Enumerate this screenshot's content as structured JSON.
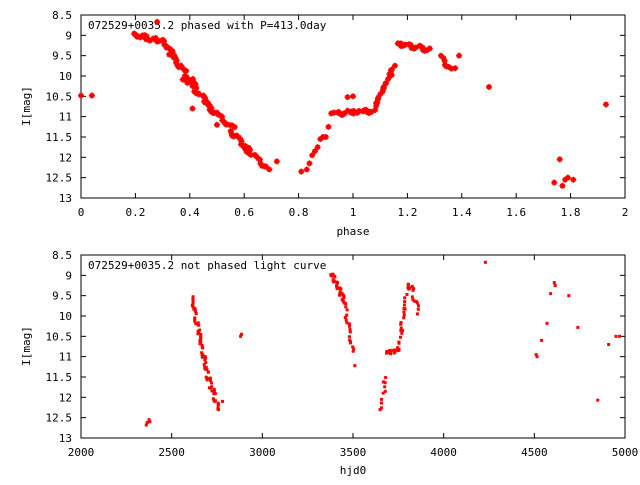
{
  "chart_data": [
    {
      "type": "scatter",
      "annotation": "072529+0035.2 phased with P=413.0day",
      "xlabel": "phase",
      "ylabel": "I[mag]",
      "xlim": [
        0,
        2
      ],
      "ylim": [
        8.5,
        13
      ],
      "y_inverted": true,
      "grid": false,
      "x_ticks": [
        "0",
        "0.2",
        "0.4",
        "0.6",
        "0.8",
        "1",
        "1.2",
        "1.4",
        "1.6",
        "1.8",
        "2"
      ],
      "y_ticks": [
        "8.5",
        "9",
        "9.5",
        "10",
        "10.5",
        "11",
        "11.5",
        "12",
        "12.5",
        "13"
      ],
      "color": "#ff0000",
      "marker": "cross",
      "segments": [
        {
          "x0": 0.19,
          "y0": 8.98,
          "x1": 0.3,
          "y1": 9.15,
          "n": 24
        },
        {
          "x0": 0.3,
          "y0": 9.15,
          "x1": 0.35,
          "y1": 9.55,
          "n": 12
        },
        {
          "x0": 0.33,
          "y0": 9.45,
          "x1": 0.42,
          "y1": 10.25,
          "n": 20
        },
        {
          "x0": 0.38,
          "y0": 10.05,
          "x1": 0.48,
          "y1": 10.75,
          "n": 18
        },
        {
          "x0": 0.45,
          "y0": 10.65,
          "x1": 0.56,
          "y1": 11.3,
          "n": 18
        },
        {
          "x0": 0.55,
          "y0": 11.35,
          "x1": 0.62,
          "y1": 11.85,
          "n": 14
        },
        {
          "x0": 0.6,
          "y0": 11.75,
          "x1": 0.69,
          "y1": 12.3,
          "n": 14
        },
        {
          "x0": 0.94,
          "y0": 10.92,
          "x1": 1.08,
          "y1": 10.86,
          "n": 22
        },
        {
          "x0": 1.08,
          "y0": 10.75,
          "x1": 1.15,
          "y1": 9.75,
          "n": 22
        },
        {
          "x0": 1.16,
          "y0": 9.2,
          "x1": 1.28,
          "y1": 9.35,
          "n": 22
        },
        {
          "x0": 1.32,
          "y0": 9.55,
          "x1": 1.37,
          "y1": 9.85,
          "n": 8
        }
      ],
      "points": [
        [
          0.0,
          10.48
        ],
        [
          0.04,
          10.48
        ],
        [
          0.28,
          8.67
        ],
        [
          0.41,
          10.8
        ],
        [
          0.45,
          10.48
        ],
        [
          0.5,
          11.2
        ],
        [
          0.5,
          10.9
        ],
        [
          0.72,
          12.1
        ],
        [
          0.81,
          12.35
        ],
        [
          0.83,
          12.3
        ],
        [
          0.84,
          12.15
        ],
        [
          0.85,
          11.95
        ],
        [
          0.86,
          11.85
        ],
        [
          0.87,
          11.75
        ],
        [
          0.88,
          11.55
        ],
        [
          0.89,
          11.5
        ],
        [
          0.9,
          11.5
        ],
        [
          0.91,
          11.25
        ],
        [
          0.92,
          10.92
        ],
        [
          0.93,
          10.9
        ],
        [
          0.98,
          10.52
        ],
        [
          1.0,
          10.5
        ],
        [
          1.39,
          9.5
        ],
        [
          1.5,
          10.27
        ],
        [
          1.74,
          12.62
        ],
        [
          1.76,
          12.05
        ],
        [
          1.77,
          12.7
        ],
        [
          1.78,
          12.55
        ],
        [
          1.79,
          12.5
        ],
        [
          1.81,
          12.55
        ],
        [
          1.93,
          10.7
        ]
      ]
    },
    {
      "type": "scatter",
      "annotation": "072529+0035.2 not phased light curve",
      "xlabel": "hjd0",
      "ylabel": "I[mag]",
      "xlim": [
        2000,
        5000
      ],
      "ylim": [
        8.5,
        13
      ],
      "y_inverted": true,
      "grid": false,
      "x_ticks": [
        "2000",
        "2500",
        "3000",
        "3500",
        "4000",
        "4500",
        "5000"
      ],
      "y_ticks": [
        "8.5",
        "9",
        "9.5",
        "10",
        "10.5",
        "11",
        "11.5",
        "12",
        "12.5",
        "13"
      ],
      "color": "#ff0000",
      "marker": "dot",
      "segments": [
        {
          "x0": 2610,
          "y0": 9.55,
          "x1": 2660,
          "y1": 10.6,
          "n": 26
        },
        {
          "x0": 2660,
          "y0": 10.6,
          "x1": 2700,
          "y1": 11.5,
          "n": 24
        },
        {
          "x0": 2700,
          "y0": 11.5,
          "x1": 2760,
          "y1": 12.3,
          "n": 22
        },
        {
          "x0": 3380,
          "y0": 8.95,
          "x1": 3450,
          "y1": 9.6,
          "n": 30
        },
        {
          "x0": 3450,
          "y0": 9.6,
          "x1": 3500,
          "y1": 10.9,
          "n": 20
        },
        {
          "x0": 3655,
          "y0": 12.3,
          "x1": 3680,
          "y1": 11.5,
          "n": 10
        },
        {
          "x0": 3690,
          "y0": 10.9,
          "x1": 3750,
          "y1": 10.85,
          "n": 20
        },
        {
          "x0": 3750,
          "y0": 10.8,
          "x1": 3790,
          "y1": 9.5,
          "n": 20
        },
        {
          "x0": 3800,
          "y0": 9.25,
          "x1": 3830,
          "y1": 9.35,
          "n": 10
        },
        {
          "x0": 3835,
          "y0": 9.5,
          "x1": 3860,
          "y1": 9.9,
          "n": 8
        }
      ],
      "points": [
        [
          2360,
          12.68
        ],
        [
          2365,
          12.62
        ],
        [
          2375,
          12.55
        ],
        [
          2380,
          12.6
        ],
        [
          2880,
          10.5
        ],
        [
          2885,
          10.45
        ],
        [
          2780,
          12.1
        ],
        [
          3510,
          11.22
        ],
        [
          4230,
          8.68
        ],
        [
          4510,
          10.95
        ],
        [
          4515,
          11.0
        ],
        [
          4540,
          10.6
        ],
        [
          4570,
          10.18
        ],
        [
          4590,
          9.45
        ],
        [
          4610,
          9.18
        ],
        [
          4615,
          9.25
        ],
        [
          4690,
          9.5
        ],
        [
          4740,
          10.28
        ],
        [
          4850,
          12.07
        ],
        [
          4910,
          10.7
        ],
        [
          4950,
          10.5
        ],
        [
          4970,
          10.5
        ]
      ]
    }
  ]
}
